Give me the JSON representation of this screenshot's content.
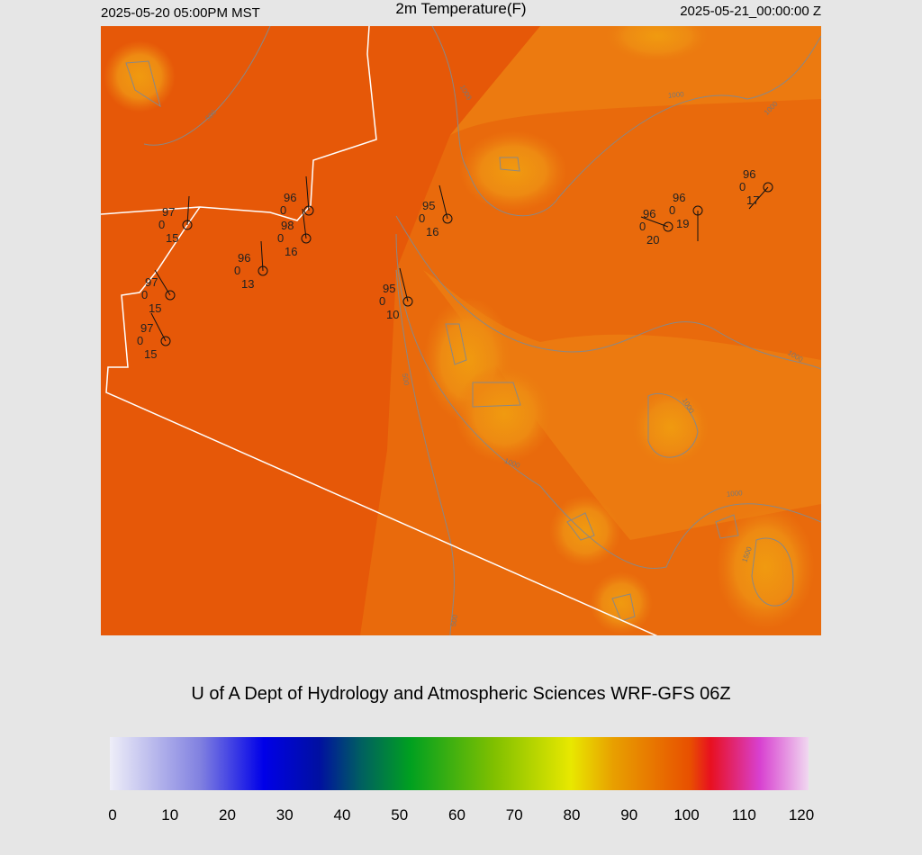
{
  "header": {
    "valid_local": "2025-05-20 05:00PM MST",
    "title": "2m Temperature(F)",
    "valid_utc": "2025-05-21_00:00:00 Z"
  },
  "stations": [
    {
      "temperature": "97",
      "code": "0",
      "dewpoint": "15"
    },
    {
      "temperature": "96",
      "code": "0"
    },
    {
      "temperature": "98",
      "code": "0",
      "dewpoint": "16"
    },
    {
      "temperature": "96",
      "code": "0",
      "dewpoint": "13"
    },
    {
      "temperature": "97",
      "code": "0",
      "dewpoint": "15"
    },
    {
      "temperature": "97",
      "code": "0",
      "dewpoint": "15"
    },
    {
      "temperature": "95",
      "code": "0",
      "dewpoint": "16"
    },
    {
      "temperature": "95",
      "code": "0",
      "dewpoint": "10"
    },
    {
      "temperature": "96",
      "code": "0",
      "dewpoint": "20"
    },
    {
      "temperature": "96",
      "code": "0",
      "dewpoint": "19"
    },
    {
      "temperature": "96",
      "code": "0",
      "dewpoint": "17"
    }
  ],
  "contour_labels": [
    "1000",
    "1000",
    "1000",
    "500",
    "1000",
    "1000",
    "1000",
    "1500",
    "500",
    "500",
    "1000"
  ],
  "footer": {
    "credit": "U of A Dept of Hydrology and Atmospheric Sciences WRF-GFS 06Z"
  },
  "colorbar": {
    "range": [
      0,
      120
    ],
    "ticks": [
      0,
      10,
      20,
      30,
      40,
      50,
      60,
      70,
      80,
      90,
      100,
      110,
      120
    ]
  }
}
